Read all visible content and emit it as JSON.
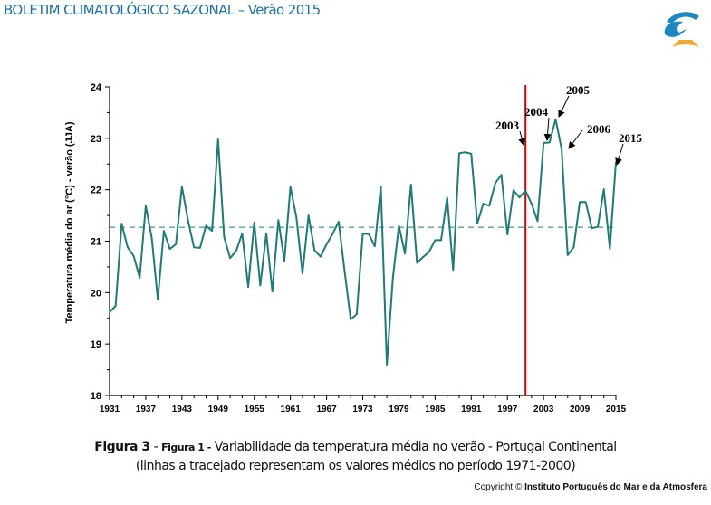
{
  "header": {
    "title": "BOLETIM CLIMATOLÓGICO SAZONAL – Verão 2015",
    "logo": "IPMA"
  },
  "caption": {
    "fig_main": "Figura 3",
    "sep1": " - ",
    "fig_sub": "Figura 1 -",
    "text": " Variabilidade da temperatura média no verão - Portugal Continental",
    "line2": "(linhas a tracejado representam os valores médios no período 1971-2000)"
  },
  "copyright": {
    "prefix": "Copyright © ",
    "owner": "Instituto Português do Mar e da Atmosfera"
  },
  "colors": {
    "series": "#1e7b78",
    "reference_line": "#e00000",
    "header": "#1f6fa8"
  },
  "chart_data": {
    "type": "line",
    "title": "",
    "xlabel": "",
    "ylabel": "Temperatura média do ar (°C) - verão (JJA)",
    "xlim": [
      1931,
      2015
    ],
    "ylim": [
      18,
      24
    ],
    "yticks": [
      "18",
      "19",
      "20",
      "21",
      "22",
      "23",
      "24"
    ],
    "xticks": [
      "1931",
      "1937",
      "1943",
      "1949",
      "1955",
      "1961",
      "1967",
      "1973",
      "1979",
      "1985",
      "1991",
      "1997",
      "2003",
      "2009",
      "2015"
    ],
    "grid": false,
    "mean_1971_2000": 21.27,
    "vertical_marker_year": 2000,
    "x": [
      1931,
      1932,
      1933,
      1934,
      1935,
      1936,
      1937,
      1938,
      1939,
      1940,
      1941,
      1942,
      1943,
      1944,
      1945,
      1946,
      1947,
      1948,
      1949,
      1950,
      1951,
      1952,
      1953,
      1954,
      1955,
      1956,
      1957,
      1958,
      1959,
      1960,
      1961,
      1962,
      1963,
      1964,
      1965,
      1966,
      1967,
      1968,
      1969,
      1970,
      1971,
      1972,
      1973,
      1974,
      1975,
      1976,
      1977,
      1978,
      1979,
      1980,
      1981,
      1982,
      1983,
      1984,
      1985,
      1986,
      1987,
      1988,
      1989,
      1990,
      1991,
      1992,
      1993,
      1994,
      1995,
      1996,
      1997,
      1998,
      1999,
      2000,
      2001,
      2002,
      2003,
      2004,
      2005,
      2006,
      2007,
      2008,
      2009,
      2010,
      2011,
      2012,
      2013,
      2014,
      2015
    ],
    "values": [
      19.62,
      19.74,
      21.34,
      20.88,
      20.71,
      20.29,
      21.69,
      21.06,
      19.86,
      21.2,
      20.85,
      20.94,
      22.06,
      21.41,
      20.88,
      20.87,
      21.3,
      21.2,
      22.98,
      21.08,
      20.67,
      20.81,
      21.15,
      20.11,
      21.36,
      20.14,
      21.15,
      20.02,
      21.41,
      20.62,
      22.06,
      21.46,
      20.37,
      21.5,
      20.82,
      20.7,
      20.94,
      21.14,
      21.38,
      20.41,
      19.48,
      19.58,
      21.14,
      21.14,
      20.9,
      22.06,
      18.6,
      20.29,
      21.3,
      20.76,
      22.1,
      20.58,
      20.69,
      20.79,
      21.02,
      21.02,
      21.85,
      20.44,
      22.71,
      22.73,
      22.7,
      21.34,
      21.73,
      21.69,
      22.13,
      22.29,
      21.13,
      21.99,
      21.85,
      21.98,
      21.73,
      21.39,
      22.91,
      22.92,
      23.37,
      22.79,
      20.73,
      20.88,
      21.76,
      21.76,
      21.25,
      21.28,
      22.01,
      20.85,
      22.54
    ],
    "annotations": [
      {
        "text": "2003",
        "year": 2003
      },
      {
        "text": "2004",
        "year": 2004
      },
      {
        "text": "2005",
        "year": 2005
      },
      {
        "text": "2006",
        "year": 2006
      },
      {
        "text": "2015",
        "year": 2015
      }
    ]
  }
}
